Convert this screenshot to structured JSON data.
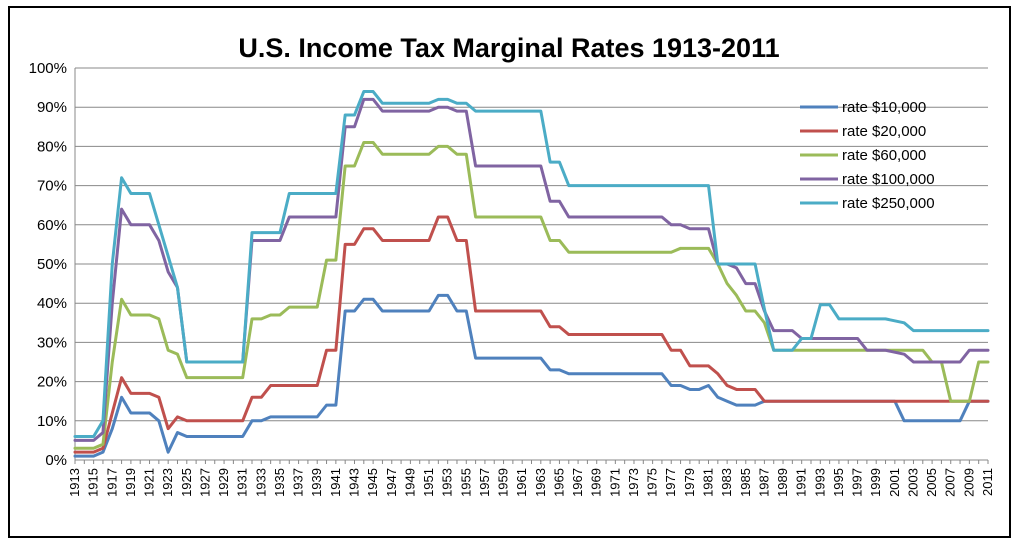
{
  "chart_data": {
    "type": "line",
    "title": "U.S. Income Tax Marginal Rates 1913-2011",
    "xlabel": "",
    "ylabel": "",
    "ylim": [
      0,
      100
    ],
    "y_ticks": [
      "0%",
      "10%",
      "20%",
      "30%",
      "40%",
      "50%",
      "60%",
      "70%",
      "80%",
      "90%",
      "100%"
    ],
    "x_start": 1913,
    "x_end": 2011,
    "x_tick_labels": [
      "1913",
      "1915",
      "1917",
      "1919",
      "1921",
      "1923",
      "1925",
      "1927",
      "1929",
      "1931",
      "1933",
      "1935",
      "1937",
      "1939",
      "1941",
      "1943",
      "1945",
      "1947",
      "1949",
      "1951",
      "1953",
      "1955",
      "1957",
      "1959",
      "1961",
      "1963",
      "1965",
      "1967",
      "1969",
      "1971",
      "1973",
      "1975",
      "1977",
      "1979",
      "1981",
      "1983",
      "1985",
      "1987",
      "1989",
      "1991",
      "1993",
      "1995",
      "1997",
      "1999",
      "2001",
      "2003",
      "2005",
      "2007",
      "2009",
      "2011"
    ],
    "legend_position": "top-right",
    "series": [
      {
        "name": "rate $10,000",
        "color": "#4F81BD",
        "points": [
          [
            1913,
            1
          ],
          [
            1915,
            1
          ],
          [
            1916,
            2
          ],
          [
            1917,
            8
          ],
          [
            1918,
            16
          ],
          [
            1919,
            12
          ],
          [
            1921,
            12
          ],
          [
            1922,
            10
          ],
          [
            1923,
            2
          ],
          [
            1924,
            7
          ],
          [
            1925,
            6
          ],
          [
            1931,
            6
          ],
          [
            1932,
            10
          ],
          [
            1933,
            10
          ],
          [
            1934,
            11
          ],
          [
            1939,
            11
          ],
          [
            1940,
            14
          ],
          [
            1941,
            14
          ],
          [
            1942,
            38
          ],
          [
            1943,
            38
          ],
          [
            1944,
            41
          ],
          [
            1945,
            41
          ],
          [
            1946,
            38
          ],
          [
            1951,
            38
          ],
          [
            1952,
            42
          ],
          [
            1953,
            42
          ],
          [
            1954,
            38
          ],
          [
            1955,
            38
          ],
          [
            1956,
            26
          ],
          [
            1963,
            26
          ],
          [
            1964,
            23
          ],
          [
            1965,
            23
          ],
          [
            1966,
            22
          ],
          [
            1976,
            22
          ],
          [
            1977,
            19
          ],
          [
            1978,
            19
          ],
          [
            1979,
            18
          ],
          [
            1980,
            18
          ],
          [
            1981,
            19
          ],
          [
            1982,
            16
          ],
          [
            1983,
            15
          ],
          [
            1984,
            14
          ],
          [
            1986,
            14
          ],
          [
            1987,
            15
          ],
          [
            2001,
            15
          ],
          [
            2002,
            10
          ],
          [
            2008,
            10
          ],
          [
            2009,
            15
          ],
          [
            2011,
            15
          ]
        ]
      },
      {
        "name": "rate $20,000",
        "color": "#C0504D",
        "points": [
          [
            1913,
            2
          ],
          [
            1915,
            2
          ],
          [
            1916,
            3
          ],
          [
            1917,
            12
          ],
          [
            1918,
            21
          ],
          [
            1919,
            17
          ],
          [
            1921,
            17
          ],
          [
            1922,
            16
          ],
          [
            1923,
            8
          ],
          [
            1924,
            11
          ],
          [
            1925,
            10
          ],
          [
            1931,
            10
          ],
          [
            1932,
            16
          ],
          [
            1933,
            16
          ],
          [
            1934,
            19
          ],
          [
            1939,
            19
          ],
          [
            1940,
            28
          ],
          [
            1941,
            28
          ],
          [
            1942,
            55
          ],
          [
            1943,
            55
          ],
          [
            1944,
            59
          ],
          [
            1945,
            59
          ],
          [
            1946,
            56
          ],
          [
            1951,
            56
          ],
          [
            1952,
            62
          ],
          [
            1953,
            62
          ],
          [
            1954,
            56
          ],
          [
            1955,
            56
          ],
          [
            1956,
            38
          ],
          [
            1963,
            38
          ],
          [
            1964,
            34
          ],
          [
            1965,
            34
          ],
          [
            1966,
            32
          ],
          [
            1976,
            32
          ],
          [
            1977,
            28
          ],
          [
            1978,
            28
          ],
          [
            1979,
            24
          ],
          [
            1981,
            24
          ],
          [
            1982,
            22
          ],
          [
            1983,
            19
          ],
          [
            1984,
            18
          ],
          [
            1986,
            18
          ],
          [
            1987,
            15
          ],
          [
            2011,
            15
          ]
        ]
      },
      {
        "name": "rate $60,000",
        "color": "#9BBB59",
        "points": [
          [
            1913,
            3
          ],
          [
            1915,
            3
          ],
          [
            1916,
            4
          ],
          [
            1917,
            25
          ],
          [
            1918,
            41
          ],
          [
            1919,
            37
          ],
          [
            1921,
            37
          ],
          [
            1922,
            36
          ],
          [
            1923,
            28
          ],
          [
            1924,
            27
          ],
          [
            1925,
            21
          ],
          [
            1931,
            21
          ],
          [
            1932,
            36
          ],
          [
            1933,
            36
          ],
          [
            1934,
            37
          ],
          [
            1935,
            37
          ],
          [
            1936,
            39
          ],
          [
            1939,
            39
          ],
          [
            1940,
            51
          ],
          [
            1941,
            51
          ],
          [
            1942,
            75
          ],
          [
            1943,
            75
          ],
          [
            1944,
            81
          ],
          [
            1945,
            81
          ],
          [
            1946,
            78
          ],
          [
            1951,
            78
          ],
          [
            1952,
            80
          ],
          [
            1953,
            80
          ],
          [
            1954,
            78
          ],
          [
            1955,
            78
          ],
          [
            1956,
            62
          ],
          [
            1963,
            62
          ],
          [
            1964,
            56
          ],
          [
            1965,
            56
          ],
          [
            1966,
            53
          ],
          [
            1976,
            53
          ],
          [
            1977,
            53
          ],
          [
            1978,
            54
          ],
          [
            1980,
            54
          ],
          [
            1981,
            54
          ],
          [
            1982,
            50
          ],
          [
            1983,
            45
          ],
          [
            1984,
            42
          ],
          [
            1985,
            38
          ],
          [
            1986,
            38
          ],
          [
            1987,
            35
          ],
          [
            1988,
            28
          ],
          [
            2004,
            28
          ],
          [
            2005,
            25
          ],
          [
            2006,
            25
          ],
          [
            2007,
            15
          ],
          [
            2009,
            15
          ],
          [
            2010,
            25
          ],
          [
            2011,
            25
          ]
        ]
      },
      {
        "name": "rate $100,000",
        "color": "#8064A2",
        "points": [
          [
            1913,
            5
          ],
          [
            1915,
            5
          ],
          [
            1916,
            7
          ],
          [
            1917,
            40
          ],
          [
            1918,
            64
          ],
          [
            1919,
            60
          ],
          [
            1921,
            60
          ],
          [
            1922,
            56
          ],
          [
            1923,
            48
          ],
          [
            1924,
            44
          ],
          [
            1925,
            25
          ],
          [
            1931,
            25
          ],
          [
            1932,
            56
          ],
          [
            1935,
            56
          ],
          [
            1936,
            62
          ],
          [
            1941,
            62
          ],
          [
            1942,
            85
          ],
          [
            1943,
            85
          ],
          [
            1944,
            92
          ],
          [
            1945,
            92
          ],
          [
            1946,
            89
          ],
          [
            1951,
            89
          ],
          [
            1952,
            90
          ],
          [
            1953,
            90
          ],
          [
            1954,
            89
          ],
          [
            1955,
            89
          ],
          [
            1956,
            75
          ],
          [
            1963,
            75
          ],
          [
            1964,
            66
          ],
          [
            1965,
            66
          ],
          [
            1966,
            62
          ],
          [
            1976,
            62
          ],
          [
            1977,
            60
          ],
          [
            1978,
            60
          ],
          [
            1979,
            59
          ],
          [
            1981,
            59
          ],
          [
            1982,
            50
          ],
          [
            1983,
            50
          ],
          [
            1984,
            49
          ],
          [
            1985,
            45
          ],
          [
            1986,
            45
          ],
          [
            1987,
            38
          ],
          [
            1988,
            33
          ],
          [
            1990,
            33
          ],
          [
            1991,
            31
          ],
          [
            1997,
            31
          ],
          [
            1998,
            28
          ],
          [
            2000,
            28
          ],
          [
            2002,
            27
          ],
          [
            2003,
            25
          ],
          [
            2008,
            25
          ],
          [
            2009,
            28
          ],
          [
            2011,
            28
          ]
        ]
      },
      {
        "name": "rate $250,000",
        "color": "#4BACC6",
        "points": [
          [
            1913,
            6
          ],
          [
            1915,
            6
          ],
          [
            1916,
            10
          ],
          [
            1917,
            50
          ],
          [
            1918,
            72
          ],
          [
            1919,
            68
          ],
          [
            1921,
            68
          ],
          [
            1922,
            60
          ],
          [
            1924,
            44
          ],
          [
            1925,
            25
          ],
          [
            1931,
            25
          ],
          [
            1932,
            58
          ],
          [
            1935,
            58
          ],
          [
            1936,
            68
          ],
          [
            1941,
            68
          ],
          [
            1942,
            88
          ],
          [
            1943,
            88
          ],
          [
            1944,
            94
          ],
          [
            1945,
            94
          ],
          [
            1946,
            91
          ],
          [
            1951,
            91
          ],
          [
            1952,
            92
          ],
          [
            1953,
            92
          ],
          [
            1954,
            91
          ],
          [
            1955,
            91
          ],
          [
            1956,
            89
          ],
          [
            1963,
            89
          ],
          [
            1964,
            76
          ],
          [
            1965,
            76
          ],
          [
            1966,
            70
          ],
          [
            1981,
            70
          ],
          [
            1982,
            50
          ],
          [
            1986,
            50
          ],
          [
            1987,
            38.5
          ],
          [
            1988,
            28
          ],
          [
            1990,
            28
          ],
          [
            1991,
            31
          ],
          [
            1992,
            31
          ],
          [
            1993,
            39.6
          ],
          [
            1994,
            39.6
          ],
          [
            1995,
            36
          ],
          [
            2000,
            36
          ],
          [
            2002,
            35
          ],
          [
            2003,
            33
          ],
          [
            2011,
            33
          ]
        ]
      }
    ]
  }
}
